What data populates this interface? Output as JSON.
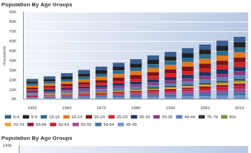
{
  "chart_data": [
    {
      "type": "bar",
      "title": "Population By Age Groups",
      "ylabel": "thousands",
      "categories": [
        "1950",
        null,
        "1960",
        null,
        "1970",
        null,
        "1980",
        null,
        "1990",
        null,
        "2000",
        null,
        "2010"
      ],
      "stacked": true,
      "grid": true,
      "legend": "bottom",
      "ylim": [
        0,
        90000
      ],
      "yticks": [
        {
          "value": 0,
          "label": "0K"
        },
        {
          "value": 10000,
          "label": "10K"
        },
        {
          "value": 20000,
          "label": "20K"
        },
        {
          "value": 30000,
          "label": "30K"
        },
        {
          "value": 40000,
          "label": "40K"
        },
        {
          "value": 50000,
          "label": "50K"
        },
        {
          "value": 60000,
          "label": "60K"
        },
        {
          "value": 70000,
          "label": "70K"
        },
        {
          "value": 80000,
          "label": "80K"
        },
        {
          "value": 90000,
          "label": "90K"
        }
      ],
      "series": [
        {
          "name": "0-4",
          "color": "#3b5e8f",
          "values": [
            2600,
            3000,
            3300,
            3600,
            3900,
            4200,
            4400,
            4600,
            4800,
            5000,
            5200,
            5400,
            5600
          ]
        },
        {
          "name": "5-9",
          "color": "#222222",
          "values": [
            2300,
            2600,
            3000,
            3300,
            3600,
            3900,
            4200,
            4400,
            4600,
            4800,
            5000,
            5200,
            5400
          ]
        },
        {
          "name": "15-19",
          "color": "#2b6d8c",
          "values": [
            1900,
            2100,
            2400,
            2800,
            3200,
            3500,
            3800,
            4100,
            4300,
            4500,
            4700,
            4900,
            5100
          ]
        },
        {
          "name": "10-14",
          "color": "#e3781c",
          "values": [
            2100,
            2300,
            2700,
            3000,
            3400,
            3700,
            4000,
            4300,
            4500,
            4700,
            4900,
            5100,
            5300
          ]
        },
        {
          "name": "20-24",
          "color": "#7d1414",
          "values": [
            1800,
            2000,
            2200,
            2500,
            2900,
            3300,
            3600,
            3900,
            4200,
            4400,
            4600,
            4800,
            5000
          ]
        },
        {
          "name": "25-29",
          "color": "#d42424",
          "values": [
            1600,
            1800,
            2000,
            2200,
            2500,
            2900,
            3200,
            3500,
            3800,
            4100,
            4300,
            4500,
            4700
          ]
        },
        {
          "name": "30-34",
          "color": "#1d3461",
          "values": [
            1400,
            1600,
            1800,
            2000,
            2200,
            2500,
            2800,
            3100,
            3400,
            3700,
            4000,
            4200,
            4400
          ]
        },
        {
          "name": "35-39",
          "color": "#8e3a80",
          "values": [
            1300,
            1400,
            1600,
            1800,
            2000,
            2200,
            2500,
            2800,
            3100,
            3400,
            3700,
            4000,
            4200
          ]
        },
        {
          "name": "40-44",
          "color": "#5a7fb5",
          "values": [
            1100,
            1300,
            1400,
            1600,
            1800,
            2000,
            2200,
            2500,
            2800,
            3100,
            3400,
            3700,
            4000
          ]
        },
        {
          "name": "75-79",
          "color": "#333333",
          "values": [
            300,
            300,
            400,
            500,
            500,
            600,
            700,
            800,
            900,
            1000,
            1100,
            1300,
            1400
          ]
        },
        {
          "name": "80+",
          "color": "#6d8f3a",
          "values": [
            200,
            300,
            300,
            400,
            400,
            500,
            600,
            700,
            800,
            900,
            1000,
            1200,
            1400
          ]
        },
        {
          "name": "70-74",
          "color": "#f0a030",
          "values": [
            400,
            500,
            600,
            600,
            700,
            800,
            900,
            1000,
            1200,
            1300,
            1400,
            1600,
            1800
          ]
        },
        {
          "name": "65-69",
          "color": "#8c1c2c",
          "values": [
            600,
            700,
            800,
            900,
            1000,
            1100,
            1200,
            1400,
            1500,
            1700,
            1900,
            2100,
            2400
          ]
        },
        {
          "name": "60-64",
          "color": "#c8202e",
          "values": [
            700,
            800,
            900,
            1100,
            1200,
            1400,
            1500,
            1700,
            1900,
            2100,
            2400,
            2700,
            3000
          ]
        },
        {
          "name": "55-59",
          "color": "#a04a8c",
          "values": [
            800,
            900,
            1100,
            1200,
            1400,
            1600,
            1800,
            2000,
            2200,
            2400,
            2700,
            3000,
            3300
          ]
        },
        {
          "name": "50-54",
          "color": "#4a6fa5",
          "values": [
            900,
            1000,
            1200,
            1400,
            1500,
            1700,
            2000,
            2200,
            2400,
            2700,
            3000,
            3300,
            3600
          ]
        },
        {
          "name": "45-49",
          "color": "#7392c4",
          "values": [
            1000,
            1200,
            1300,
            1500,
            1700,
            1900,
            2100,
            2400,
            2700,
            3000,
            3300,
            3600,
            3900
          ]
        }
      ]
    },
    {
      "type": "bar",
      "title": "Population By Age Groups",
      "ylim": [
        0,
        140000
      ],
      "yticks": [
        {
          "value": 140000,
          "label": "140k"
        }
      ]
    }
  ]
}
